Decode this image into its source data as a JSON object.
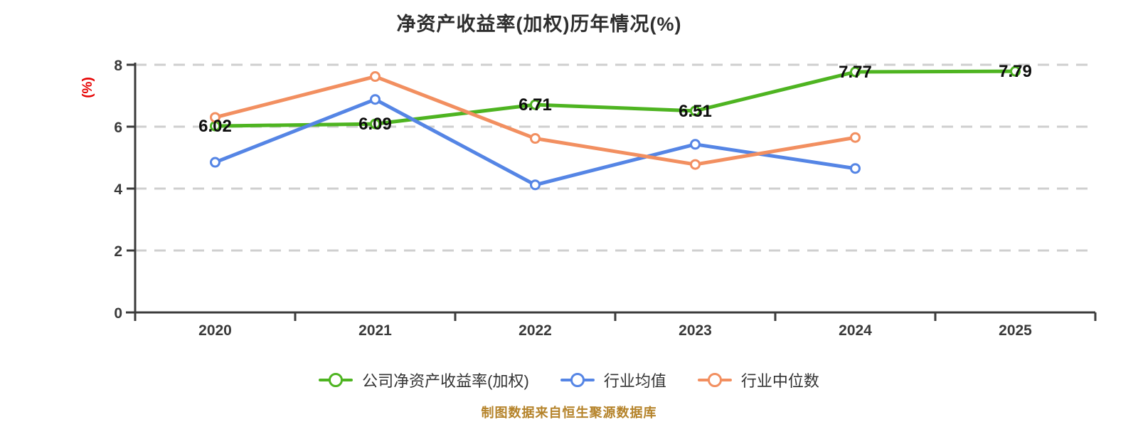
{
  "header": {
    "title": "净资产收益率(加权)历年情况(%)"
  },
  "y_axis": {
    "unit_label": "(%)",
    "unit_color": "#e60000"
  },
  "footer": {
    "source_note": "制图数据来自恒生聚源数据库",
    "color": "#b5832a"
  },
  "colors": {
    "grid": "#cfcfcf",
    "axis": "#3b3b3b",
    "company": "#4eb421",
    "industry_mean": "#5585e5",
    "industry_median": "#f28f60"
  },
  "chart_data": {
    "type": "line",
    "title": "净资产收益率(加权)历年情况(%)",
    "categories": [
      "2020",
      "2021",
      "2022",
      "2023",
      "2024",
      "2025"
    ],
    "series": [
      {
        "name": "公司净资产收益率(加权)",
        "color": "#4eb421",
        "values": [
          6.02,
          6.09,
          6.71,
          6.51,
          7.77,
          7.79
        ],
        "point_labels": [
          "6.02",
          "6.09",
          "6.71",
          "6.51",
          "7.77",
          "7.79"
        ]
      },
      {
        "name": "行业均值",
        "color": "#5585e5",
        "values": [
          4.85,
          6.88,
          4.12,
          5.43,
          4.65,
          null
        ],
        "point_labels": null
      },
      {
        "name": "行业中位数",
        "color": "#f28f60",
        "values": [
          6.3,
          7.62,
          5.62,
          4.78,
          5.65,
          null
        ],
        "point_labels": null
      }
    ],
    "ylabel": "(%)",
    "ylim": [
      0,
      8
    ],
    "yticks": [
      0,
      2,
      4,
      6,
      8
    ],
    "grid": "dashed horizontal",
    "legend_position": "bottom",
    "marker": "open-circle"
  }
}
